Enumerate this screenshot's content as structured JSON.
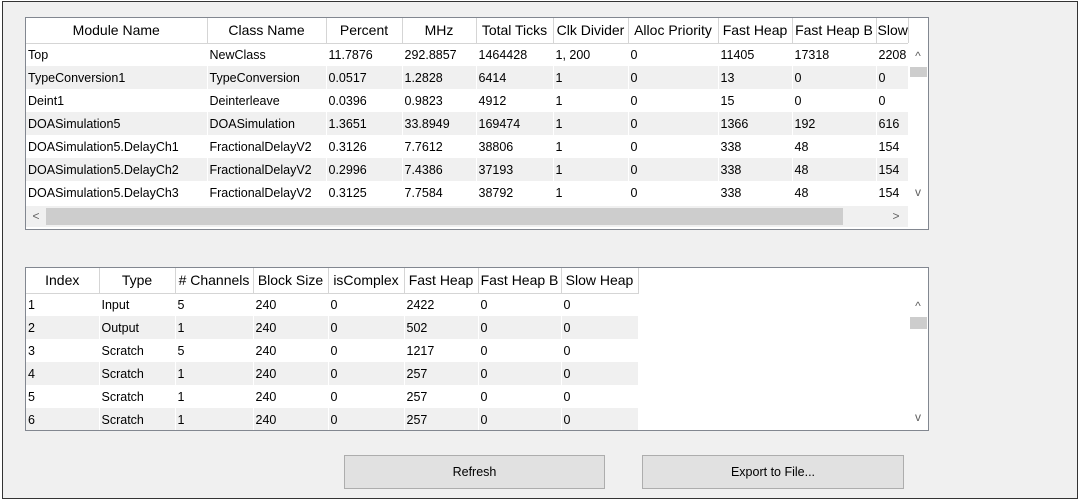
{
  "modules_table": {
    "columns": [
      "Module Name",
      "Class Name",
      "Percent",
      "MHz",
      "Total Ticks",
      "Clk Divider",
      "Alloc Priority",
      "Fast Heap",
      "Fast Heap B",
      "Slow"
    ],
    "rows": [
      [
        "Top",
        "NewClass",
        "11.7876",
        "292.8857",
        "1464428",
        "1, 200",
        "0",
        "11405",
        "17318",
        "2208"
      ],
      [
        "TypeConversion1",
        "TypeConversion",
        "0.0517",
        "1.2828",
        "6414",
        "1",
        "0",
        "13",
        "0",
        "0"
      ],
      [
        "Deint1",
        "Deinterleave",
        "0.0396",
        "0.9823",
        "4912",
        "1",
        "0",
        "15",
        "0",
        "0"
      ],
      [
        "DOASimulation5",
        "DOASimulation",
        "1.3651",
        "33.8949",
        "169474",
        "1",
        "0",
        "1366",
        "192",
        "616"
      ],
      [
        "DOASimulation5.DelayCh1",
        "FractionalDelayV2",
        "0.3126",
        "7.7612",
        "38806",
        "1",
        "0",
        "338",
        "48",
        "154"
      ],
      [
        "DOASimulation5.DelayCh2",
        "FractionalDelayV2",
        "0.2996",
        "7.4386",
        "37193",
        "1",
        "0",
        "338",
        "48",
        "154"
      ],
      [
        "DOASimulation5.DelayCh3",
        "FractionalDelayV2",
        "0.3125",
        "7.7584",
        "38792",
        "1",
        "0",
        "338",
        "48",
        "154"
      ]
    ]
  },
  "buffers_table": {
    "columns": [
      "Index",
      "Type",
      "# Channels",
      "Block Size",
      "isComplex",
      "Fast Heap",
      "Fast Heap B",
      "Slow Heap"
    ],
    "rows": [
      [
        "1",
        "Input",
        "5",
        "240",
        "0",
        "2422",
        "0",
        "0"
      ],
      [
        "2",
        "Output",
        "1",
        "240",
        "0",
        "502",
        "0",
        "0"
      ],
      [
        "3",
        "Scratch",
        "5",
        "240",
        "0",
        "1217",
        "0",
        "0"
      ],
      [
        "4",
        "Scratch",
        "1",
        "240",
        "0",
        "257",
        "0",
        "0"
      ],
      [
        "5",
        "Scratch",
        "1",
        "240",
        "0",
        "257",
        "0",
        "0"
      ],
      [
        "6",
        "Scratch",
        "1",
        "240",
        "0",
        "257",
        "0",
        "0"
      ]
    ]
  },
  "scroll": {
    "up": "^",
    "down": "v",
    "left": "<",
    "right": ">"
  },
  "buttons": {
    "refresh": "Refresh",
    "export": "Export to File..."
  }
}
